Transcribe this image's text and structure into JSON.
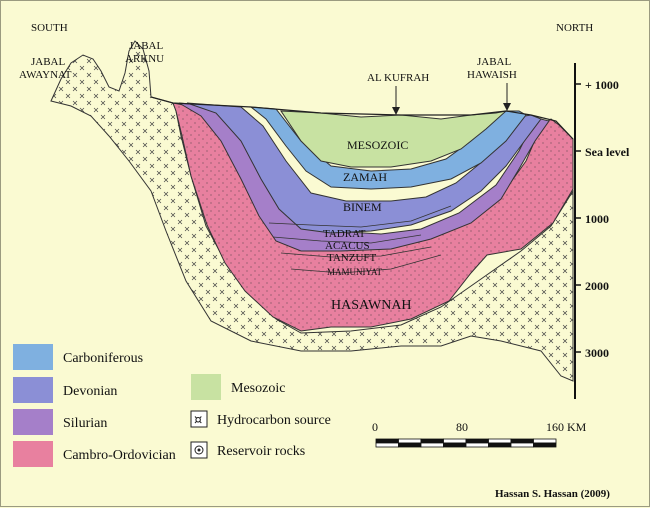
{
  "compass": {
    "south": "SOUTH",
    "north": "NORTH"
  },
  "locations": {
    "awaynat": [
      "JABAL",
      "AWAYNAT"
    ],
    "arknu": [
      "JABAL",
      "ARKNU"
    ],
    "kufrah": "AL KUFRAH",
    "hawaish": [
      "JABAL",
      "HAWAISH"
    ]
  },
  "formations": {
    "mesozoic": "MESOZOIC",
    "zamah": "ZAMAH",
    "binem": "BINEM",
    "tadrat": "TADRAT",
    "acacus": "ACACUS",
    "tanzuft": "TANZUFT",
    "mamuniyat": "MAMUNIYAT",
    "hasawnah": "HASAWNAH"
  },
  "depth_axis": {
    "ticks": [
      {
        "label": "+ 1000",
        "value": 1000
      },
      {
        "label": "Sea level",
        "value": 0
      },
      {
        "label": "1000",
        "value": -1000
      },
      {
        "label": "2000",
        "value": -2000
      },
      {
        "label": "3000",
        "value": -3000
      }
    ]
  },
  "legend": {
    "items": [
      {
        "label": "Carboniferous",
        "color": "#7fb0e0",
        "pattern": "none"
      },
      {
        "label": "Devonian",
        "color": "#8b8fd6",
        "pattern": "none"
      },
      {
        "label": "Silurian",
        "color": "#a57fc9",
        "pattern": "none"
      },
      {
        "label": "Cambro-Ordovician",
        "color": "#e8809f",
        "pattern": "none"
      },
      {
        "label": "Mesozoic",
        "color": "#c8e2a2",
        "pattern": "none"
      },
      {
        "label": "Hydrocarbon source",
        "color": "#ffffff",
        "pattern": "hydrocarbon"
      },
      {
        "label": "Reservoir rocks",
        "color": "#ffffff",
        "pattern": "reservoir"
      }
    ]
  },
  "scale_bar": {
    "labels": [
      "0",
      "80",
      "160 KM"
    ],
    "values_km": [
      0,
      80,
      160
    ]
  },
  "credit": "Hassan S. Hassan (2009)",
  "colors": {
    "background": "#fafad2",
    "carboniferous": "#7fb0e0",
    "devonian": "#8b8fd6",
    "silurian": "#a57fc9",
    "cambro_ordovician": "#e8809f",
    "mesozoic": "#c8e2a2"
  }
}
